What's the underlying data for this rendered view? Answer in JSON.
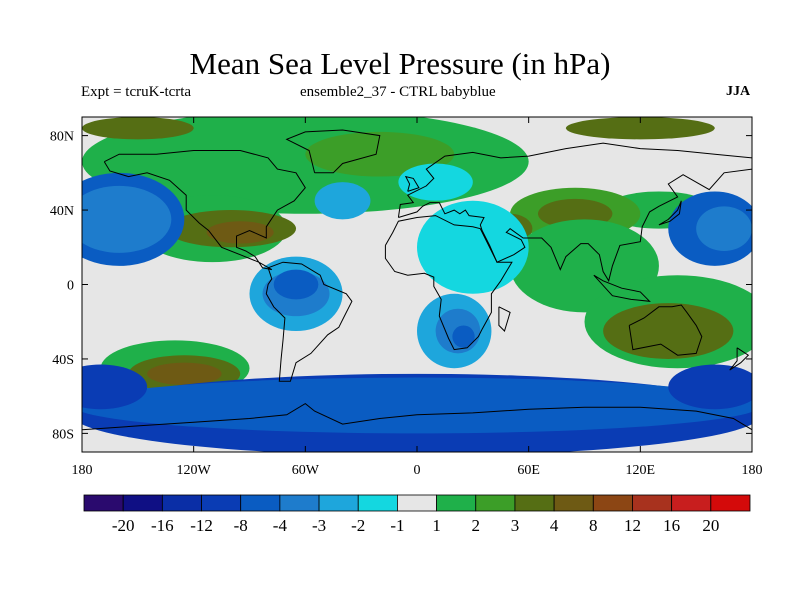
{
  "title": "Mean Sea Level Pressure (in hPa)",
  "subtitle_left": "Expt = tcruK-tcrta",
  "subtitle_center": "ensemble2_37 - CTRL babyblue",
  "subtitle_right": "JJA",
  "chart_data": {
    "type": "heatmap",
    "title": "Mean Sea Level Pressure (in hPa)",
    "xlim": [
      -180,
      180
    ],
    "ylim": [
      -90,
      90
    ],
    "x_ticks": [
      {
        "value": -180,
        "label": "180"
      },
      {
        "value": -120,
        "label": "120W"
      },
      {
        "value": -60,
        "label": "60W"
      },
      {
        "value": 0,
        "label": "0"
      },
      {
        "value": 60,
        "label": "60E"
      },
      {
        "value": 120,
        "label": "120E"
      },
      {
        "value": 180,
        "label": "180"
      }
    ],
    "y_ticks": [
      {
        "value": 80,
        "label": "80N"
      },
      {
        "value": 40,
        "label": "40N"
      },
      {
        "value": 0,
        "label": "0"
      },
      {
        "value": -40,
        "label": "40S"
      },
      {
        "value": -80,
        "label": "80S"
      }
    ],
    "colorbar": {
      "colors": [
        "#2a0a6e",
        "#0f0f84",
        "#0a2ea6",
        "#0a3cb4",
        "#0a5cc2",
        "#1e7ccc",
        "#1ea6dc",
        "#14d7e0",
        "#e6e6e6",
        "#1fb04a",
        "#3c9e28",
        "#556e14",
        "#6e5a14",
        "#8c4614",
        "#a8321e",
        "#c81e1e",
        "#d40a0a"
      ],
      "labels": [
        "-20",
        "-16",
        "-12",
        "-8",
        "-4",
        "-3",
        "-2",
        "-1",
        "1",
        "2",
        "3",
        "4",
        "8",
        "12",
        "16",
        "20"
      ]
    },
    "background_color": "#e6e6e6",
    "regions": [
      {
        "level": 9,
        "center": [
          -60,
          66
        ],
        "radius": [
          120,
          28
        ]
      },
      {
        "level": 10,
        "center": [
          -20,
          70
        ],
        "radius": [
          40,
          12
        ]
      },
      {
        "level": 11,
        "center": [
          -150,
          84
        ],
        "radius": [
          30,
          6
        ]
      },
      {
        "level": 11,
        "center": [
          120,
          84
        ],
        "radius": [
          40,
          6
        ]
      },
      {
        "level": 9,
        "center": [
          130,
          40
        ],
        "radius": [
          30,
          10
        ]
      },
      {
        "level": 10,
        "center": [
          85,
          38
        ],
        "radius": [
          35,
          14
        ]
      },
      {
        "level": 11,
        "center": [
          85,
          38
        ],
        "radius": [
          20,
          8
        ]
      },
      {
        "level": 9,
        "center": [
          -110,
          30
        ],
        "radius": [
          40,
          18
        ]
      },
      {
        "level": 11,
        "center": [
          -100,
          30
        ],
        "radius": [
          35,
          10
        ]
      },
      {
        "level": 12,
        "center": [
          -95,
          28
        ],
        "radius": [
          18,
          6
        ]
      },
      {
        "level": 11,
        "center": [
          50,
          30
        ],
        "radius": [
          12,
          8
        ]
      },
      {
        "level": 9,
        "center": [
          90,
          10
        ],
        "radius": [
          40,
          25
        ]
      },
      {
        "level": 9,
        "center": [
          140,
          -20
        ],
        "radius": [
          50,
          25
        ]
      },
      {
        "level": 11,
        "center": [
          135,
          -25
        ],
        "radius": [
          35,
          15
        ]
      },
      {
        "level": 9,
        "center": [
          -130,
          -45
        ],
        "radius": [
          40,
          15
        ]
      },
      {
        "level": 11,
        "center": [
          -125,
          -48
        ],
        "radius": [
          30,
          10
        ]
      },
      {
        "level": 12,
        "center": [
          -125,
          -48
        ],
        "radius": [
          20,
          6
        ]
      },
      {
        "level": 4,
        "center": [
          -160,
          35
        ],
        "radius": [
          35,
          25
        ]
      },
      {
        "level": 5,
        "center": [
          -160,
          35
        ],
        "radius": [
          28,
          18
        ]
      },
      {
        "level": 4,
        "center": [
          160,
          30
        ],
        "radius": [
          25,
          20
        ]
      },
      {
        "level": 5,
        "center": [
          165,
          30
        ],
        "radius": [
          15,
          12
        ]
      },
      {
        "level": 6,
        "center": [
          -65,
          -5
        ],
        "radius": [
          25,
          20
        ]
      },
      {
        "level": 5,
        "center": [
          -65,
          -5
        ],
        "radius": [
          18,
          12
        ]
      },
      {
        "level": 4,
        "center": [
          -65,
          0
        ],
        "radius": [
          12,
          8
        ]
      },
      {
        "level": 6,
        "center": [
          20,
          -25
        ],
        "radius": [
          20,
          20
        ]
      },
      {
        "level": 5,
        "center": [
          22,
          -25
        ],
        "radius": [
          12,
          12
        ]
      },
      {
        "level": 4,
        "center": [
          25,
          -28
        ],
        "radius": [
          6,
          6
        ]
      },
      {
        "level": 7,
        "center": [
          30,
          20
        ],
        "radius": [
          30,
          25
        ]
      },
      {
        "level": 6,
        "center": [
          -40,
          45
        ],
        "radius": [
          15,
          10
        ]
      },
      {
        "level": 7,
        "center": [
          10,
          55
        ],
        "radius": [
          20,
          10
        ]
      },
      {
        "level": 3,
        "center": [
          0,
          -70
        ],
        "radius": [
          185,
          22
        ]
      },
      {
        "level": 4,
        "center": [
          0,
          -65
        ],
        "radius": [
          185,
          15
        ]
      },
      {
        "level": 3,
        "center": [
          -170,
          -55
        ],
        "radius": [
          25,
          12
        ]
      },
      {
        "level": 3,
        "center": [
          160,
          -55
        ],
        "radius": [
          25,
          12
        ]
      }
    ]
  }
}
